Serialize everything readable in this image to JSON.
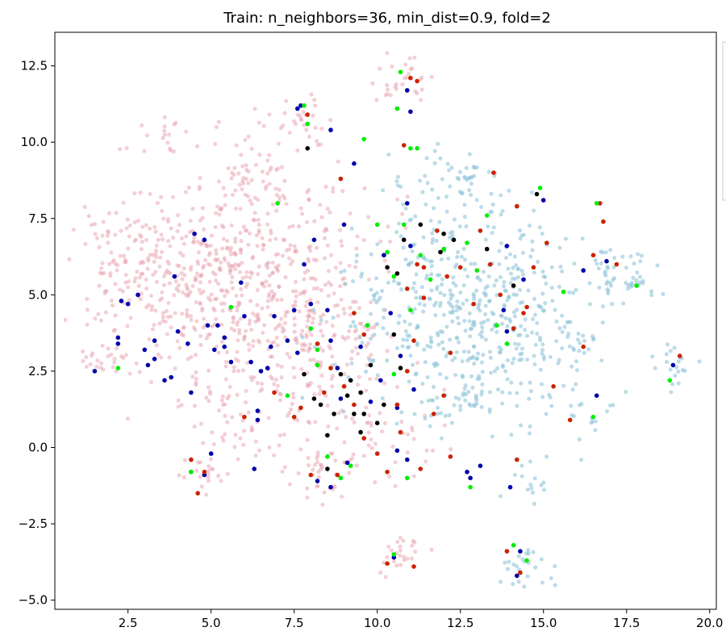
{
  "chart_data": {
    "type": "scatter",
    "title": "Train: n_neighbors=36, min_dist=0.9, fold=2",
    "xlabel": "",
    "ylabel": "",
    "xlim": [
      0.3,
      20.2
    ],
    "ylim": [
      -5.3,
      13.6
    ],
    "grid": false,
    "xticks": [
      "2.5",
      "5.0",
      "7.5",
      "10.0",
      "12.5",
      "15.0",
      "17.5",
      "20.0"
    ],
    "yticks": [
      "−5.0",
      "−2.5",
      "0.0",
      "2.5",
      "5.0",
      "7.5",
      "10.0",
      "12.5"
    ],
    "legend_placement": "right (cut off)",
    "series": [
      {
        "color": "#e8a0ad",
        "opacity": 0.5,
        "size": 4.5,
        "clusters": [
          {
            "cx": 4.5,
            "cy": 5.5,
            "sx": 1.7,
            "sy": 1.5,
            "n": 330
          },
          {
            "cx": 7.0,
            "cy": 5.5,
            "sx": 1.5,
            "sy": 2.0,
            "n": 330
          },
          {
            "cx": 8.5,
            "cy": 3.2,
            "sx": 1.0,
            "sy": 1.3,
            "n": 120
          },
          {
            "cx": 2.4,
            "cy": 6.3,
            "sx": 0.6,
            "sy": 0.9,
            "n": 60
          },
          {
            "cx": 3.8,
            "cy": 10.2,
            "sx": 0.35,
            "sy": 0.3,
            "n": 15
          },
          {
            "cx": 6.0,
            "cy": 9.2,
            "sx": 0.6,
            "sy": 0.9,
            "n": 40
          },
          {
            "cx": 7.8,
            "cy": 10.7,
            "sx": 0.45,
            "sy": 0.45,
            "n": 25
          },
          {
            "cx": 10.7,
            "cy": 12.0,
            "sx": 0.45,
            "sy": 0.45,
            "n": 30
          },
          {
            "cx": 1.8,
            "cy": 2.9,
            "sx": 0.5,
            "sy": 0.5,
            "n": 25
          },
          {
            "cx": 4.6,
            "cy": -0.9,
            "sx": 0.35,
            "sy": 0.4,
            "n": 20
          },
          {
            "cx": 8.4,
            "cy": -0.7,
            "sx": 0.5,
            "sy": 0.5,
            "n": 40
          },
          {
            "cx": 10.6,
            "cy": -3.4,
            "sx": 0.35,
            "sy": 0.4,
            "n": 25
          },
          {
            "cx": 6.0,
            "cy": 1.0,
            "sx": 0.9,
            "sy": 0.7,
            "n": 60
          },
          {
            "cx": 10.2,
            "cy": 0.3,
            "sx": 0.8,
            "sy": 0.9,
            "n": 40
          }
        ]
      },
      {
        "color": "#8fc4d8",
        "opacity": 0.6,
        "size": 4.5,
        "clusters": [
          {
            "cx": 12.0,
            "cy": 4.5,
            "sx": 1.6,
            "sy": 1.6,
            "n": 330
          },
          {
            "cx": 14.3,
            "cy": 4.0,
            "sx": 1.2,
            "sy": 1.8,
            "n": 180
          },
          {
            "cx": 12.9,
            "cy": 8.8,
            "sx": 0.5,
            "sy": 0.6,
            "n": 30
          },
          {
            "cx": 11.6,
            "cy": 8.5,
            "sx": 0.6,
            "sy": 0.6,
            "n": 30
          },
          {
            "cx": 17.4,
            "cy": 5.6,
            "sx": 0.5,
            "sy": 0.5,
            "n": 50
          },
          {
            "cx": 16.1,
            "cy": 3.1,
            "sx": 0.3,
            "sy": 0.4,
            "n": 15
          },
          {
            "cx": 18.9,
            "cy": 2.7,
            "sx": 0.3,
            "sy": 0.35,
            "n": 20
          },
          {
            "cx": 14.7,
            "cy": -1.0,
            "sx": 0.3,
            "sy": 0.4,
            "n": 15
          },
          {
            "cx": 14.5,
            "cy": -4.0,
            "sx": 0.4,
            "sy": 0.35,
            "n": 25
          },
          {
            "cx": 16.3,
            "cy": 0.9,
            "sx": 0.4,
            "sy": 0.4,
            "n": 15
          },
          {
            "cx": 12.5,
            "cy": 1.5,
            "sx": 0.8,
            "sy": 0.5,
            "n": 40
          }
        ]
      },
      {
        "color": "#0000aa",
        "opacity": 1,
        "size": 5,
        "points": [
          [
            1.5,
            2.5
          ],
          [
            2.3,
            4.8
          ],
          [
            2.5,
            4.7
          ],
          [
            2.2,
            3.6
          ],
          [
            2.8,
            5.0
          ],
          [
            3.0,
            3.2
          ],
          [
            3.3,
            3.5
          ],
          [
            3.3,
            2.9
          ],
          [
            3.6,
            2.2
          ],
          [
            3.8,
            2.3
          ],
          [
            3.9,
            5.6
          ],
          [
            4.0,
            3.8
          ],
          [
            4.3,
            3.4
          ],
          [
            4.4,
            1.8
          ],
          [
            4.5,
            7.0
          ],
          [
            4.8,
            6.8
          ],
          [
            4.9,
            4.0
          ],
          [
            5.1,
            3.2
          ],
          [
            5.2,
            4.0
          ],
          [
            5.4,
            3.3
          ],
          [
            5.4,
            3.6
          ],
          [
            5.6,
            2.8
          ],
          [
            5.9,
            5.4
          ],
          [
            6.0,
            4.3
          ],
          [
            6.2,
            2.8
          ],
          [
            6.4,
            1.2
          ],
          [
            6.4,
            0.9
          ],
          [
            6.5,
            2.5
          ],
          [
            6.7,
            2.6
          ],
          [
            6.8,
            3.3
          ],
          [
            6.9,
            4.3
          ],
          [
            7.3,
            3.5
          ],
          [
            7.5,
            4.5
          ],
          [
            7.6,
            3.1
          ],
          [
            7.8,
            6.0
          ],
          [
            8.0,
            4.7
          ],
          [
            8.1,
            6.8
          ],
          [
            8.5,
            4.5
          ],
          [
            8.6,
            3.5
          ],
          [
            8.8,
            2.6
          ],
          [
            8.9,
            1.6
          ],
          [
            9.0,
            7.3
          ],
          [
            9.3,
            9.3
          ],
          [
            9.5,
            3.3
          ],
          [
            9.8,
            1.5
          ],
          [
            10.1,
            2.2
          ],
          [
            10.2,
            6.3
          ],
          [
            10.4,
            4.4
          ],
          [
            10.6,
            1.3
          ],
          [
            10.7,
            3.0
          ],
          [
            10.9,
            8.0
          ],
          [
            11.0,
            6.6
          ],
          [
            11.1,
            1.9
          ],
          [
            7.6,
            11.1
          ],
          [
            7.7,
            11.2
          ],
          [
            8.6,
            10.4
          ],
          [
            10.9,
            11.7
          ],
          [
            11.0,
            11.0
          ],
          [
            4.4,
            -0.8
          ],
          [
            4.8,
            -0.9
          ],
          [
            5.0,
            -0.2
          ],
          [
            6.3,
            -0.7
          ],
          [
            8.2,
            -1.1
          ],
          [
            8.6,
            -1.3
          ],
          [
            9.1,
            -0.5
          ],
          [
            10.6,
            -0.1
          ],
          [
            10.9,
            -0.4
          ],
          [
            12.7,
            -0.8
          ],
          [
            12.8,
            -1.0
          ],
          [
            13.1,
            -0.6
          ],
          [
            14.0,
            -1.3
          ],
          [
            14.2,
            -4.2
          ],
          [
            14.3,
            -3.4
          ],
          [
            10.5,
            -3.6
          ],
          [
            13.9,
            6.6
          ],
          [
            14.4,
            5.5
          ],
          [
            13.8,
            4.5
          ],
          [
            15.0,
            8.1
          ],
          [
            16.2,
            5.8
          ],
          [
            16.9,
            6.1
          ],
          [
            16.6,
            1.7
          ],
          [
            18.9,
            2.7
          ],
          [
            13.9,
            3.8
          ],
          [
            2.2,
            3.4
          ],
          [
            3.1,
            2.7
          ]
        ]
      },
      {
        "color": "#cc2200",
        "opacity": 1,
        "size": 5,
        "points": [
          [
            4.6,
            -1.5
          ],
          [
            4.8,
            -0.8
          ],
          [
            6.0,
            1.0
          ],
          [
            6.9,
            1.8
          ],
          [
            7.5,
            1.0
          ],
          [
            7.7,
            1.3
          ],
          [
            7.9,
            10.9
          ],
          [
            8.2,
            3.4
          ],
          [
            8.4,
            1.8
          ],
          [
            8.6,
            2.6
          ],
          [
            8.9,
            8.8
          ],
          [
            9.0,
            2.0
          ],
          [
            9.3,
            1.4
          ],
          [
            9.6,
            0.3
          ],
          [
            10.0,
            -0.2
          ],
          [
            10.3,
            -0.8
          ],
          [
            10.6,
            1.4
          ],
          [
            10.7,
            0.5
          ],
          [
            10.9,
            2.5
          ],
          [
            11.1,
            3.5
          ],
          [
            11.2,
            6.0
          ],
          [
            11.3,
            -0.7
          ],
          [
            11.4,
            4.9
          ],
          [
            11.8,
            7.1
          ],
          [
            12.1,
            5.6
          ],
          [
            12.2,
            3.1
          ],
          [
            12.5,
            5.9
          ],
          [
            12.9,
            4.7
          ],
          [
            13.1,
            7.1
          ],
          [
            13.4,
            6.0
          ],
          [
            13.7,
            5.0
          ],
          [
            14.1,
            3.9
          ],
          [
            14.2,
            -0.4
          ],
          [
            14.4,
            4.4
          ],
          [
            14.7,
            5.9
          ],
          [
            15.1,
            6.7
          ],
          [
            15.3,
            2.0
          ],
          [
            15.8,
            0.9
          ],
          [
            16.2,
            3.3
          ],
          [
            16.5,
            6.3
          ],
          [
            16.7,
            8.0
          ],
          [
            16.8,
            7.4
          ],
          [
            17.2,
            6.0
          ],
          [
            19.1,
            3.0
          ],
          [
            13.9,
            -3.4
          ],
          [
            14.3,
            -4.1
          ],
          [
            11.1,
            -3.9
          ],
          [
            10.3,
            -3.8
          ],
          [
            10.8,
            9.9
          ],
          [
            11.0,
            12.1
          ],
          [
            11.2,
            12.0
          ],
          [
            11.4,
            5.9
          ],
          [
            10.9,
            5.2
          ],
          [
            12.0,
            1.7
          ],
          [
            13.5,
            9.0
          ],
          [
            14.2,
            7.9
          ],
          [
            14.5,
            4.6
          ],
          [
            12.2,
            -0.3
          ],
          [
            11.7,
            1.1
          ],
          [
            8.0,
            -0.9
          ],
          [
            8.8,
            -0.9
          ],
          [
            4.4,
            -0.4
          ],
          [
            9.6,
            3.7
          ],
          [
            9.3,
            4.4
          ]
        ]
      },
      {
        "color": "#00ee00",
        "opacity": 1,
        "size": 5,
        "points": [
          [
            2.2,
            2.6
          ],
          [
            4.4,
            -0.8
          ],
          [
            5.6,
            4.6
          ],
          [
            7.0,
            8.0
          ],
          [
            7.3,
            1.7
          ],
          [
            7.8,
            11.2
          ],
          [
            7.9,
            10.6
          ],
          [
            8.0,
            3.9
          ],
          [
            8.2,
            3.2
          ],
          [
            8.5,
            -0.3
          ],
          [
            8.9,
            -1.0
          ],
          [
            9.6,
            10.1
          ],
          [
            9.7,
            4.0
          ],
          [
            10.0,
            7.3
          ],
          [
            10.3,
            6.4
          ],
          [
            10.5,
            5.6
          ],
          [
            10.6,
            11.1
          ],
          [
            10.7,
            12.3
          ],
          [
            10.8,
            7.3
          ],
          [
            11.0,
            9.8
          ],
          [
            11.2,
            9.8
          ],
          [
            11.3,
            6.3
          ],
          [
            11.6,
            5.5
          ],
          [
            12.0,
            6.5
          ],
          [
            12.7,
            6.7
          ],
          [
            13.0,
            5.8
          ],
          [
            13.3,
            7.6
          ],
          [
            13.6,
            4.0
          ],
          [
            13.9,
            3.4
          ],
          [
            14.1,
            -3.2
          ],
          [
            14.5,
            -3.7
          ],
          [
            14.9,
            8.5
          ],
          [
            15.6,
            5.1
          ],
          [
            16.5,
            1.0
          ],
          [
            16.6,
            8.0
          ],
          [
            17.8,
            5.3
          ],
          [
            18.8,
            2.2
          ],
          [
            10.9,
            -1.0
          ],
          [
            10.5,
            -3.5
          ],
          [
            8.2,
            2.7
          ],
          [
            9.2,
            -0.6
          ],
          [
            10.5,
            2.4
          ],
          [
            12.8,
            -1.3
          ],
          [
            11.0,
            4.5
          ]
        ]
      },
      {
        "color": "#000000",
        "opacity": 1,
        "size": 5,
        "points": [
          [
            7.8,
            2.4
          ],
          [
            7.9,
            9.8
          ],
          [
            8.1,
            1.6
          ],
          [
            8.3,
            1.4
          ],
          [
            8.5,
            0.4
          ],
          [
            8.7,
            1.1
          ],
          [
            8.9,
            2.4
          ],
          [
            9.1,
            1.7
          ],
          [
            9.2,
            2.2
          ],
          [
            9.3,
            1.1
          ],
          [
            9.5,
            0.5
          ],
          [
            9.6,
            1.1
          ],
          [
            9.8,
            2.7
          ],
          [
            10.0,
            0.8
          ],
          [
            10.3,
            5.9
          ],
          [
            10.5,
            3.7
          ],
          [
            10.6,
            5.7
          ],
          [
            10.7,
            2.6
          ],
          [
            10.8,
            6.8
          ],
          [
            11.3,
            7.3
          ],
          [
            11.9,
            6.4
          ],
          [
            12.0,
            7.0
          ],
          [
            12.3,
            6.8
          ],
          [
            13.3,
            6.5
          ],
          [
            14.1,
            5.3
          ],
          [
            14.8,
            8.3
          ],
          [
            8.5,
            -0.7
          ],
          [
            9.5,
            1.8
          ],
          [
            10.2,
            1.4
          ]
        ]
      }
    ]
  }
}
